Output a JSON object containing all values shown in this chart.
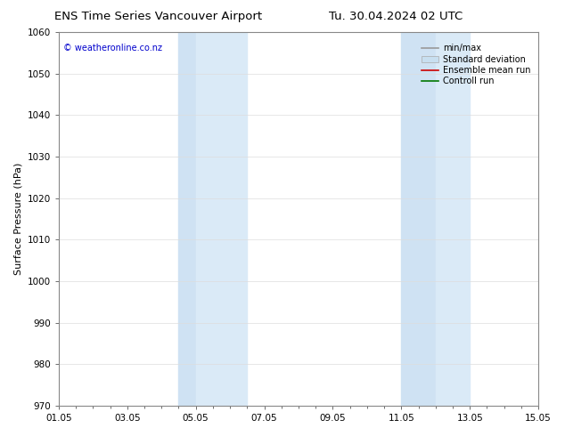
{
  "title_left": "ENS Time Series Vancouver Airport",
  "title_right": "Tu. 30.04.2024 02 UTC",
  "ylabel": "Surface Pressure (hPa)",
  "ylim": [
    970,
    1060
  ],
  "yticks": [
    970,
    980,
    990,
    1000,
    1010,
    1020,
    1030,
    1040,
    1050,
    1060
  ],
  "xlim": [
    0,
    14
  ],
  "xtick_labels": [
    "01.05",
    "03.05",
    "05.05",
    "07.05",
    "09.05",
    "11.05",
    "13.05",
    "15.05"
  ],
  "xtick_positions": [
    0,
    2,
    4,
    6,
    8,
    10,
    12,
    14
  ],
  "shaded_regions": [
    {
      "x_start": 3.5,
      "x_end": 4.0,
      "color": "#cfe2f3"
    },
    {
      "x_start": 4.0,
      "x_end": 5.5,
      "color": "#daeaf7"
    },
    {
      "x_start": 10.0,
      "x_end": 11.0,
      "color": "#cfe2f3"
    },
    {
      "x_start": 11.0,
      "x_end": 12.0,
      "color": "#daeaf7"
    }
  ],
  "copyright_text": "© weatheronline.co.nz",
  "copyright_color": "#0000cc",
  "legend_items": [
    {
      "label": "min/max",
      "color": "#999999",
      "lw": 1.2,
      "style": "-",
      "type": "line"
    },
    {
      "label": "Standard deviation",
      "color": "#c8dff0",
      "lw": 8,
      "style": "-",
      "type": "patch"
    },
    {
      "label": "Ensemble mean run",
      "color": "#cc0000",
      "lw": 1.2,
      "style": "-",
      "type": "line"
    },
    {
      "label": "Controll run",
      "color": "#007700",
      "lw": 1.2,
      "style": "-",
      "type": "line"
    }
  ],
  "background_color": "#ffffff",
  "plot_bg_color": "#ffffff",
  "grid_color": "#dddddd",
  "tick_color": "#333333",
  "title_fontsize": 9.5,
  "axis_label_fontsize": 8,
  "tick_fontsize": 7.5,
  "legend_fontsize": 7
}
